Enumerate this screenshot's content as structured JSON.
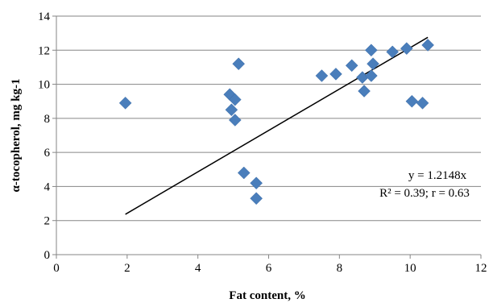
{
  "chart_data": {
    "type": "scatter",
    "xlabel": "Fat content, %",
    "ylabel": "α-tocopherol, mg kg-1",
    "xlim": [
      0,
      12
    ],
    "ylim": [
      0,
      14
    ],
    "xticks": [
      "0",
      "2",
      "4",
      "6",
      "8",
      "10",
      "12"
    ],
    "yticks": [
      "0",
      "2",
      "4",
      "6",
      "8",
      "10",
      "12",
      "14"
    ],
    "grid": "horizontal",
    "legend": "none",
    "marker": "diamond",
    "marker_color": "#4a7ebb",
    "points": [
      {
        "x": 1.95,
        "y": 8.9
      },
      {
        "x": 4.9,
        "y": 9.4
      },
      {
        "x": 4.95,
        "y": 8.5
      },
      {
        "x": 5.05,
        "y": 9.1
      },
      {
        "x": 5.05,
        "y": 7.9
      },
      {
        "x": 5.15,
        "y": 11.2
      },
      {
        "x": 5.3,
        "y": 4.8
      },
      {
        "x": 5.65,
        "y": 4.2
      },
      {
        "x": 5.65,
        "y": 3.3
      },
      {
        "x": 7.5,
        "y": 10.5
      },
      {
        "x": 7.9,
        "y": 10.6
      },
      {
        "x": 8.35,
        "y": 11.1
      },
      {
        "x": 8.65,
        "y": 10.4
      },
      {
        "x": 8.7,
        "y": 9.6
      },
      {
        "x": 8.9,
        "y": 12.0
      },
      {
        "x": 8.9,
        "y": 10.5
      },
      {
        "x": 8.95,
        "y": 11.2
      },
      {
        "x": 9.5,
        "y": 11.9
      },
      {
        "x": 9.9,
        "y": 12.1
      },
      {
        "x": 10.05,
        "y": 9.0
      },
      {
        "x": 10.35,
        "y": 8.9
      },
      {
        "x": 10.5,
        "y": 12.3
      }
    ],
    "trendline": {
      "type": "linear",
      "slope": 1.2148,
      "x": [
        1.95,
        10.5
      ],
      "color": "#000000"
    },
    "annotation": {
      "line1": "y = 1.2148x",
      "line2": "R² = 0.39; r = 0.63"
    }
  }
}
